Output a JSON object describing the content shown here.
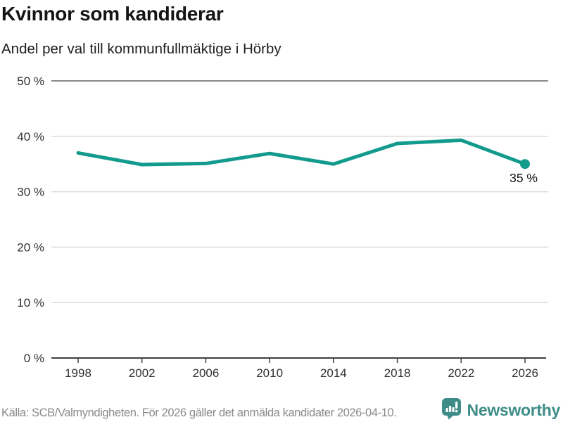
{
  "title": "Kvinnor som kandiderar",
  "subtitle": "Andel per val till kommunfullmäktige i Hörby",
  "footer": {
    "source": "Källa: SCB/Valmyndigheten. För 2026 gäller det anmälda kandidater 2026-04-10.",
    "brand": "Newsworthy"
  },
  "colors": {
    "line": "#129a8d",
    "grid": "#dcdcdc",
    "grid_top": "#8a8a8a",
    "axis": "#3f3f3f",
    "tick_label": "#303030",
    "title_text": "#151515",
    "footer_text": "#8a8a8a",
    "brand_teal": "#3e8c87"
  },
  "chart_data": {
    "type": "line",
    "title": "Kvinnor som kandiderar",
    "subtitle": "Andel per val till kommunfullmäktige i Hörby",
    "x": [
      1998,
      2002,
      2006,
      2010,
      2014,
      2018,
      2022,
      2026
    ],
    "x_tick_labels": [
      "1998",
      "2002",
      "2006",
      "2010",
      "2014",
      "2018",
      "2022",
      "2026"
    ],
    "values": [
      37.0,
      34.9,
      35.1,
      36.9,
      35.0,
      38.7,
      39.3,
      35.0
    ],
    "unit": "%",
    "ylim": [
      0,
      50
    ],
    "y_ticks": [
      0,
      10,
      20,
      30,
      40,
      50
    ],
    "y_tick_format": "{v} %",
    "grid": "horizontal",
    "legend": "none",
    "line_width": 5,
    "end_marker": true,
    "annotation": {
      "x": 2026,
      "value": 35,
      "label": "35 %"
    }
  }
}
